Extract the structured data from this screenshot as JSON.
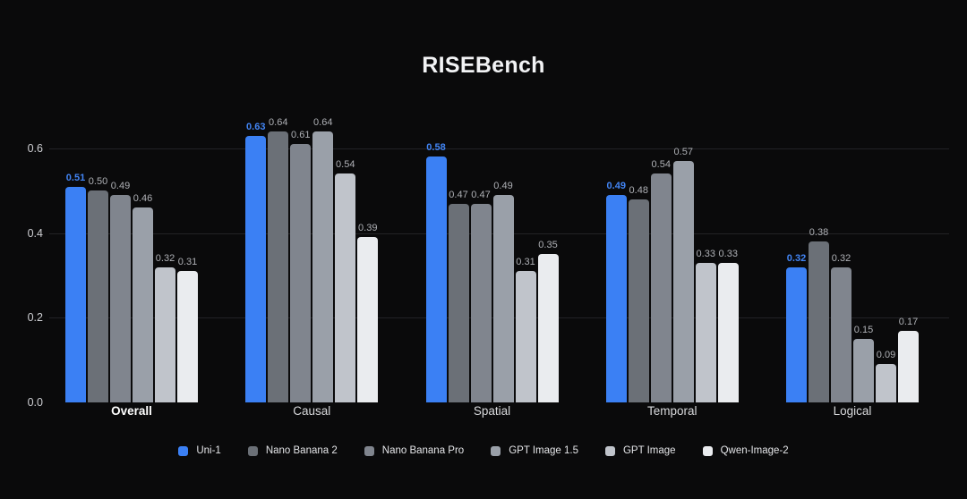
{
  "title": "RISEBench",
  "chart_data": {
    "type": "bar",
    "title": "RISEBench",
    "categories": [
      "Overall",
      "Causal",
      "Spatial",
      "Temporal",
      "Logical"
    ],
    "series": [
      {
        "name": "Uni-1",
        "color": "#3b80f4",
        "values": [
          0.51,
          0.63,
          0.58,
          0.49,
          0.32
        ]
      },
      {
        "name": "Nano Banana 2",
        "color": "#6b7077",
        "values": [
          0.5,
          0.64,
          0.47,
          0.48,
          0.38
        ]
      },
      {
        "name": "Nano Banana Pro",
        "color": "#80858e",
        "values": [
          0.49,
          0.61,
          0.47,
          0.54,
          0.32
        ]
      },
      {
        "name": "GPT Image 1.5",
        "color": "#9aa0a9",
        "values": [
          0.46,
          0.64,
          0.49,
          0.57,
          0.15
        ]
      },
      {
        "name": "GPT Image",
        "color": "#c0c4cb",
        "values": [
          0.32,
          0.54,
          0.31,
          0.33,
          0.09
        ]
      },
      {
        "name": "Qwen-Image-2",
        "color": "#eaecef",
        "values": [
          0.31,
          0.39,
          0.35,
          0.33,
          0.17
        ]
      }
    ],
    "y_ticks": [
      0.0,
      0.2,
      0.4,
      0.6
    ],
    "ylim": [
      0,
      0.6
    ],
    "xlabel": "",
    "ylabel": "",
    "grid": true,
    "legend_position": "bottom",
    "value_labels": true,
    "highlight_series": "Uni-1",
    "highlight_category": "Overall"
  },
  "colors": {
    "background": "#0a0a0b",
    "grid": "#222226",
    "tick_label": "#cdced2",
    "value_label": "#aeb0b5",
    "value_label_highlight": "#4285f5",
    "category_label": "#d8d9dc",
    "category_label_highlight": "#ffffff",
    "title_color": "#f2f3f5",
    "legend_label": "#e4e5e8"
  }
}
